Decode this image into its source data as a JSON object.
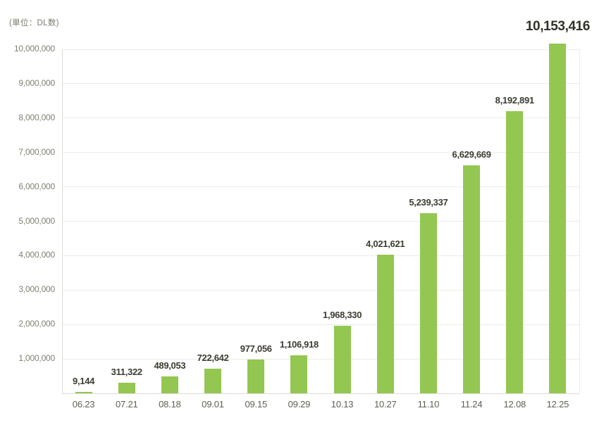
{
  "chart_data": {
    "type": "bar",
    "unit_label": "(単位：DL数)",
    "categories": [
      "06.23",
      "07.21",
      "08.18",
      "09.01",
      "09.15",
      "09.29",
      "10.13",
      "10.27",
      "11.10",
      "11.24",
      "12.08",
      "12.25"
    ],
    "values": [
      9144,
      311322,
      489053,
      722642,
      977056,
      1106918,
      1968330,
      4021621,
      5239337,
      6629669,
      8192891,
      10153416
    ],
    "value_labels": [
      "9,144",
      "311,322",
      "489,053",
      "722,642",
      "977,056",
      "1,106,918",
      "1,968,330",
      "4,021,621",
      "5,239,337",
      "6,629,669",
      "8,192,891",
      "10,153,416"
    ],
    "yticks": [
      1000000,
      2000000,
      3000000,
      4000000,
      5000000,
      6000000,
      7000000,
      8000000,
      9000000,
      10000000
    ],
    "ytick_labels": [
      "1,000,000",
      "2,000,000",
      "3,000,000",
      "4,000,000",
      "5,000,000",
      "6,000,000",
      "7,000,000",
      "8,000,000",
      "9,000,000",
      "10,000,000"
    ],
    "ylim": [
      0,
      10000000
    ],
    "xlabel": "",
    "ylabel": "",
    "title": "",
    "grid": true,
    "legend": "none",
    "highlight_last_label": true,
    "colors": {
      "bar": "#93C751",
      "gridline": "#ECECE8",
      "axis": "#DCDCD6",
      "ytick_text": "#807F72",
      "xtick_text": "#605F53",
      "bar_label_text": "#3C3B31",
      "big_label_text": "#32312A",
      "background": "#FFFFFF"
    }
  }
}
